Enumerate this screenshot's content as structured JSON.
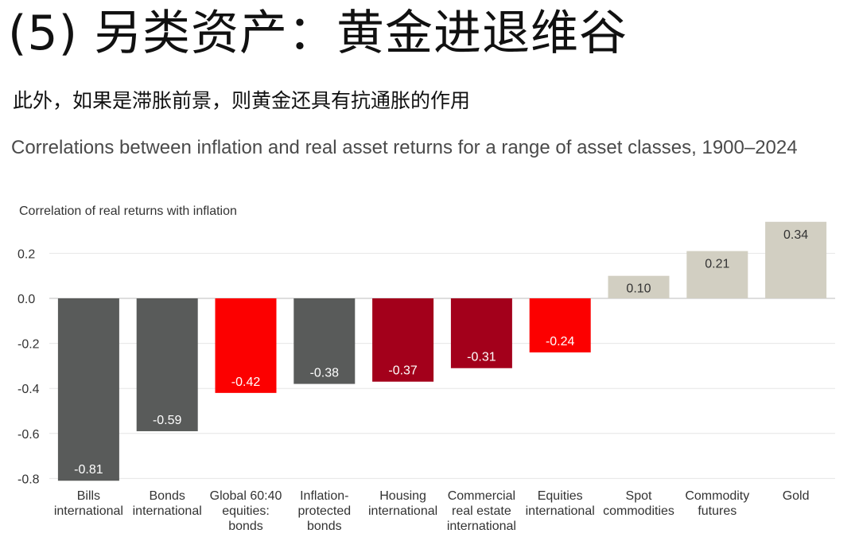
{
  "heading": "(5) 另类资产：黄金进退维谷",
  "subheading": "此外，如果是滞胀前景，则黄金还具有抗通胀的作用",
  "chart_data": {
    "type": "bar",
    "title": "Correlations between inflation and real asset returns for a range of asset classes, 1900–2024",
    "ylabel": "Correlation of real returns with inflation",
    "xlabel": "",
    "ylim": [
      -0.8,
      0.34
    ],
    "yticks": [
      "0.2",
      "0.0",
      "-0.2",
      "-0.4",
      "-0.6",
      "-0.8"
    ],
    "grid": true,
    "categories": [
      [
        "Bills",
        "international"
      ],
      [
        "Bonds",
        "international"
      ],
      [
        "Global 60:40",
        "equities:",
        "bonds"
      ],
      [
        "Inflation-",
        "protected",
        "bonds"
      ],
      [
        "Housing",
        "international"
      ],
      [
        "Commercial",
        "real estate",
        "international"
      ],
      [
        "Equities",
        "international"
      ],
      [
        "Spot",
        "commodities"
      ],
      [
        "Commodity",
        "futures"
      ],
      [
        "Gold"
      ]
    ],
    "values": [
      -0.81,
      -0.59,
      -0.42,
      -0.38,
      -0.37,
      -0.31,
      -0.24,
      0.1,
      0.21,
      0.34
    ],
    "labels": [
      "-0.81",
      "-0.59",
      "-0.42",
      "-0.38",
      "-0.37",
      "-0.31",
      "-0.24",
      "0.10",
      "0.21",
      "0.34"
    ],
    "colors": [
      "#595b5a",
      "#595b5a",
      "#fc0000",
      "#595b5a",
      "#a3001b",
      "#a3001b",
      "#fc0000",
      "#d2cfc2",
      "#d2cfc2",
      "#d2cfc2"
    ],
    "label_colors": [
      "#ffffff",
      "#ffffff",
      "#ffffff",
      "#ffffff",
      "#ffffff",
      "#ffffff",
      "#ffffff",
      "#333333",
      "#333333",
      "#333333"
    ]
  }
}
